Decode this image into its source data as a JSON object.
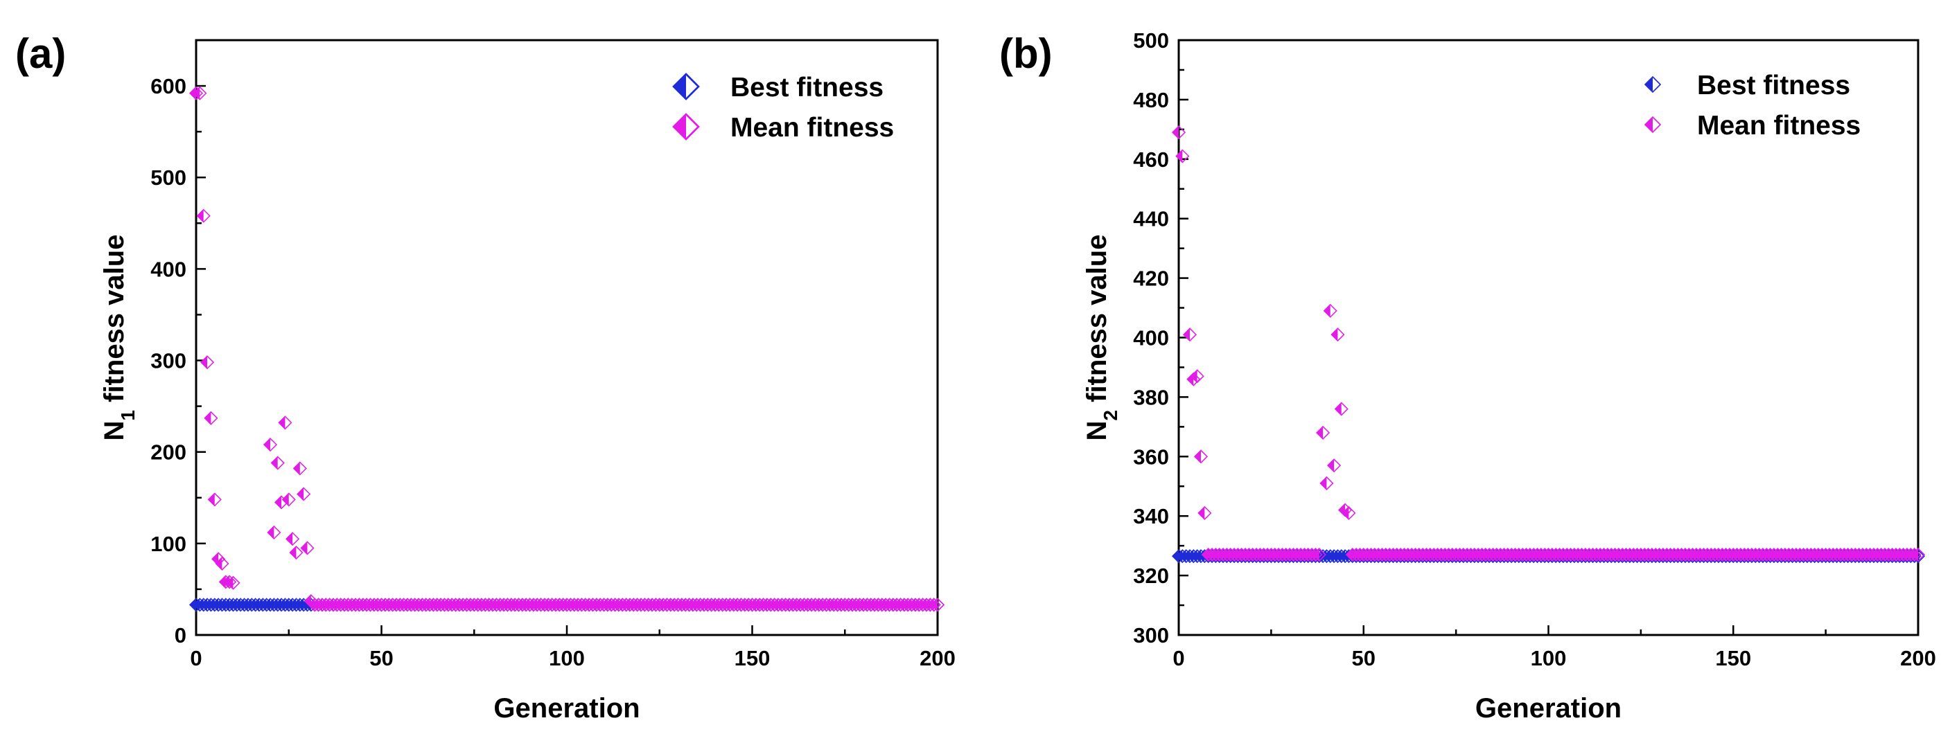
{
  "chart_data": [
    {
      "type": "scatter",
      "panel_label": "(a)",
      "xlabel": "Generation",
      "ylabel_main": "N",
      "ylabel_sub": "1",
      "ylabel_rest": " fitness value",
      "xlim": [
        0,
        200
      ],
      "ylim": [
        0,
        650
      ],
      "xticks": [
        0,
        50,
        100,
        150,
        200
      ],
      "yticks": [
        0,
        100,
        200,
        300,
        400,
        500,
        600
      ],
      "legend_position": "top-right",
      "series": [
        {
          "name": "Best fitness",
          "color": "#1f2bd6",
          "marker": "half-filled-diamond",
          "x_range": [
            0,
            200
          ],
          "x_step": 1,
          "y_const": 33
        },
        {
          "name": "Mean fitness",
          "color": "#e21ce6",
          "marker": "half-filled-diamond",
          "points": [
            [
              0,
              592
            ],
            [
              1,
              592
            ],
            [
              2,
              458
            ],
            [
              3,
              298
            ],
            [
              4,
              237
            ],
            [
              5,
              148
            ],
            [
              6,
              83
            ],
            [
              7,
              78
            ],
            [
              8,
              58
            ],
            [
              9,
              58
            ],
            [
              10,
              57
            ],
            [
              20,
              208
            ],
            [
              21,
              112
            ],
            [
              22,
              188
            ],
            [
              23,
              145
            ],
            [
              24,
              232
            ],
            [
              25,
              148
            ],
            [
              26,
              105
            ],
            [
              27,
              90
            ],
            [
              28,
              182
            ],
            [
              29,
              154
            ],
            [
              30,
              95
            ],
            [
              31,
              37
            ]
          ],
          "tail": {
            "x_from": 32,
            "x_to": 200,
            "y_const": 33
          }
        }
      ]
    },
    {
      "type": "scatter",
      "panel_label": "(b)",
      "xlabel": "Generation",
      "ylabel_main": "N",
      "ylabel_sub": "2",
      "ylabel_rest": " fitness value",
      "xlim": [
        0,
        200
      ],
      "ylim": [
        300,
        500
      ],
      "xticks": [
        0,
        50,
        100,
        150,
        200
      ],
      "yticks": [
        300,
        320,
        340,
        360,
        380,
        400,
        420,
        440,
        460,
        480,
        500
      ],
      "legend_position": "top-right",
      "series": [
        {
          "name": "Best fitness",
          "color": "#1f2bd6",
          "marker": "half-filled-diamond",
          "x_range": [
            0,
            200
          ],
          "x_step": 1,
          "y_const": 326.5
        },
        {
          "name": "Mean fitness",
          "color": "#e21ce6",
          "marker": "half-filled-diamond",
          "points": [
            [
              0,
              469
            ],
            [
              1,
              461
            ],
            [
              3,
              401
            ],
            [
              4,
              386
            ],
            [
              5,
              387
            ],
            [
              6,
              360
            ],
            [
              7,
              341
            ],
            [
              8,
              327
            ],
            [
              9,
              327
            ],
            [
              39,
              368
            ],
            [
              40,
              351
            ],
            [
              41,
              409
            ],
            [
              42,
              357
            ],
            [
              43,
              401
            ],
            [
              44,
              376
            ],
            [
              45,
              342
            ],
            [
              46,
              341
            ]
          ],
          "tail_ranges": [
            [
              10,
              38
            ],
            [
              47,
              200
            ]
          ],
          "tail_y": 327
        }
      ]
    }
  ]
}
